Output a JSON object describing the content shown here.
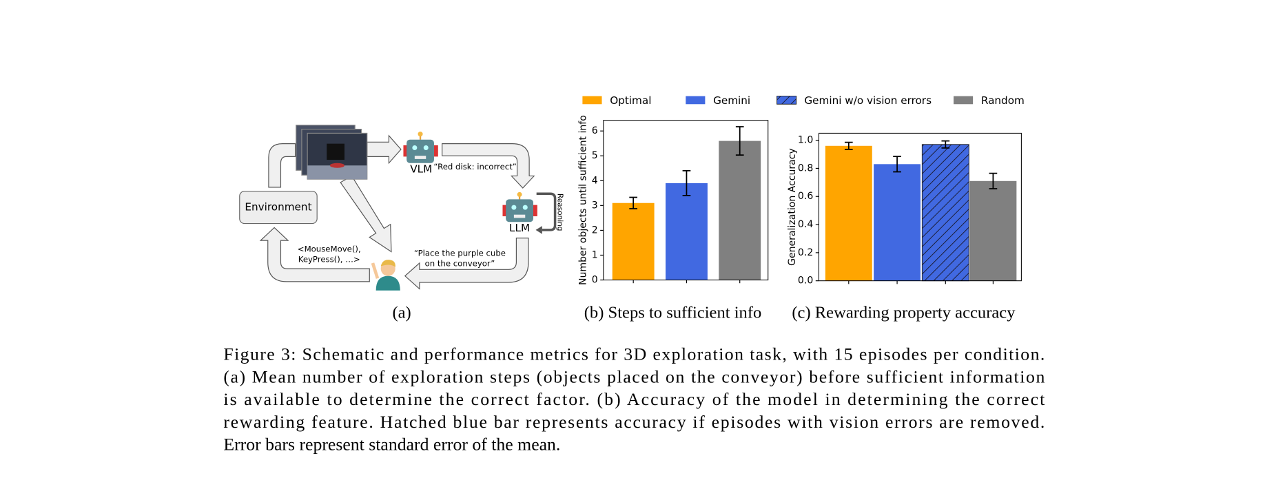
{
  "diagram": {
    "environment": "Environment",
    "vlm": "VLM",
    "vlm_output": "“Red disk: incorrect”",
    "llm": "LLM",
    "reasoning": "Reasoning",
    "llm_output": [
      "“Place the purple cube",
      "on the conveyor”"
    ],
    "actions": [
      "<MouseMove(),",
      "KeyPress(), …>"
    ]
  },
  "legend": [
    {
      "name": "Optimal",
      "color": "#ffa500"
    },
    {
      "name": "Gemini",
      "color": "#4169e1"
    },
    {
      "name": "Gemini w/o vision errors",
      "color": "#4169e1",
      "hatch": true
    },
    {
      "name": "Random",
      "color": "#808080"
    }
  ],
  "chart_data": [
    {
      "type": "bar",
      "ylabel": "Number objects until sufficient info",
      "categories": [
        null,
        null,
        null
      ],
      "values": [
        3.1,
        3.9,
        5.6
      ],
      "errors": [
        0.23,
        0.5,
        0.57
      ],
      "colors": [
        "#ffa500",
        "#4169e1",
        "#808080"
      ],
      "hatch": [
        false,
        false,
        false
      ],
      "ylim": [
        0,
        6.43
      ],
      "yticks": [
        0,
        1,
        2,
        3,
        4,
        5,
        6
      ]
    },
    {
      "type": "bar",
      "ylabel": "Generalization Accuracy",
      "categories": [
        null,
        null,
        null,
        null
      ],
      "values": [
        0.96,
        0.83,
        0.97,
        0.71
      ],
      "errors": [
        0.025,
        0.055,
        0.025,
        0.055
      ],
      "colors": [
        "#ffa500",
        "#4169e1",
        "#4169e1",
        "#808080"
      ],
      "hatch": [
        false,
        false,
        true,
        false
      ],
      "ylim": [
        0,
        1.05
      ],
      "yticks": [
        {
          "value": 0,
          "label": "0.0"
        },
        0.2,
        0.4,
        0.6,
        0.8,
        {
          "value": 1,
          "label": "1.0"
        }
      ]
    }
  ],
  "subcaptions": [
    "(a)",
    "(b) Steps to sufficient info",
    "(c) Rewarding property accuracy"
  ],
  "caption": [
    "Figure 3: Schematic and performance metrics for 3D exploration task, with 15 episodes per condition.",
    "(a) Mean number of exploration steps (objects placed on the conveyor) before sufficient information",
    "is available to determine the correct factor.  (b) Accuracy of the model in determining the correct",
    "rewarding feature. Hatched blue bar represents accuracy if episodes with vision errors are removed.",
    "Error bars represent standard error of the mean."
  ]
}
